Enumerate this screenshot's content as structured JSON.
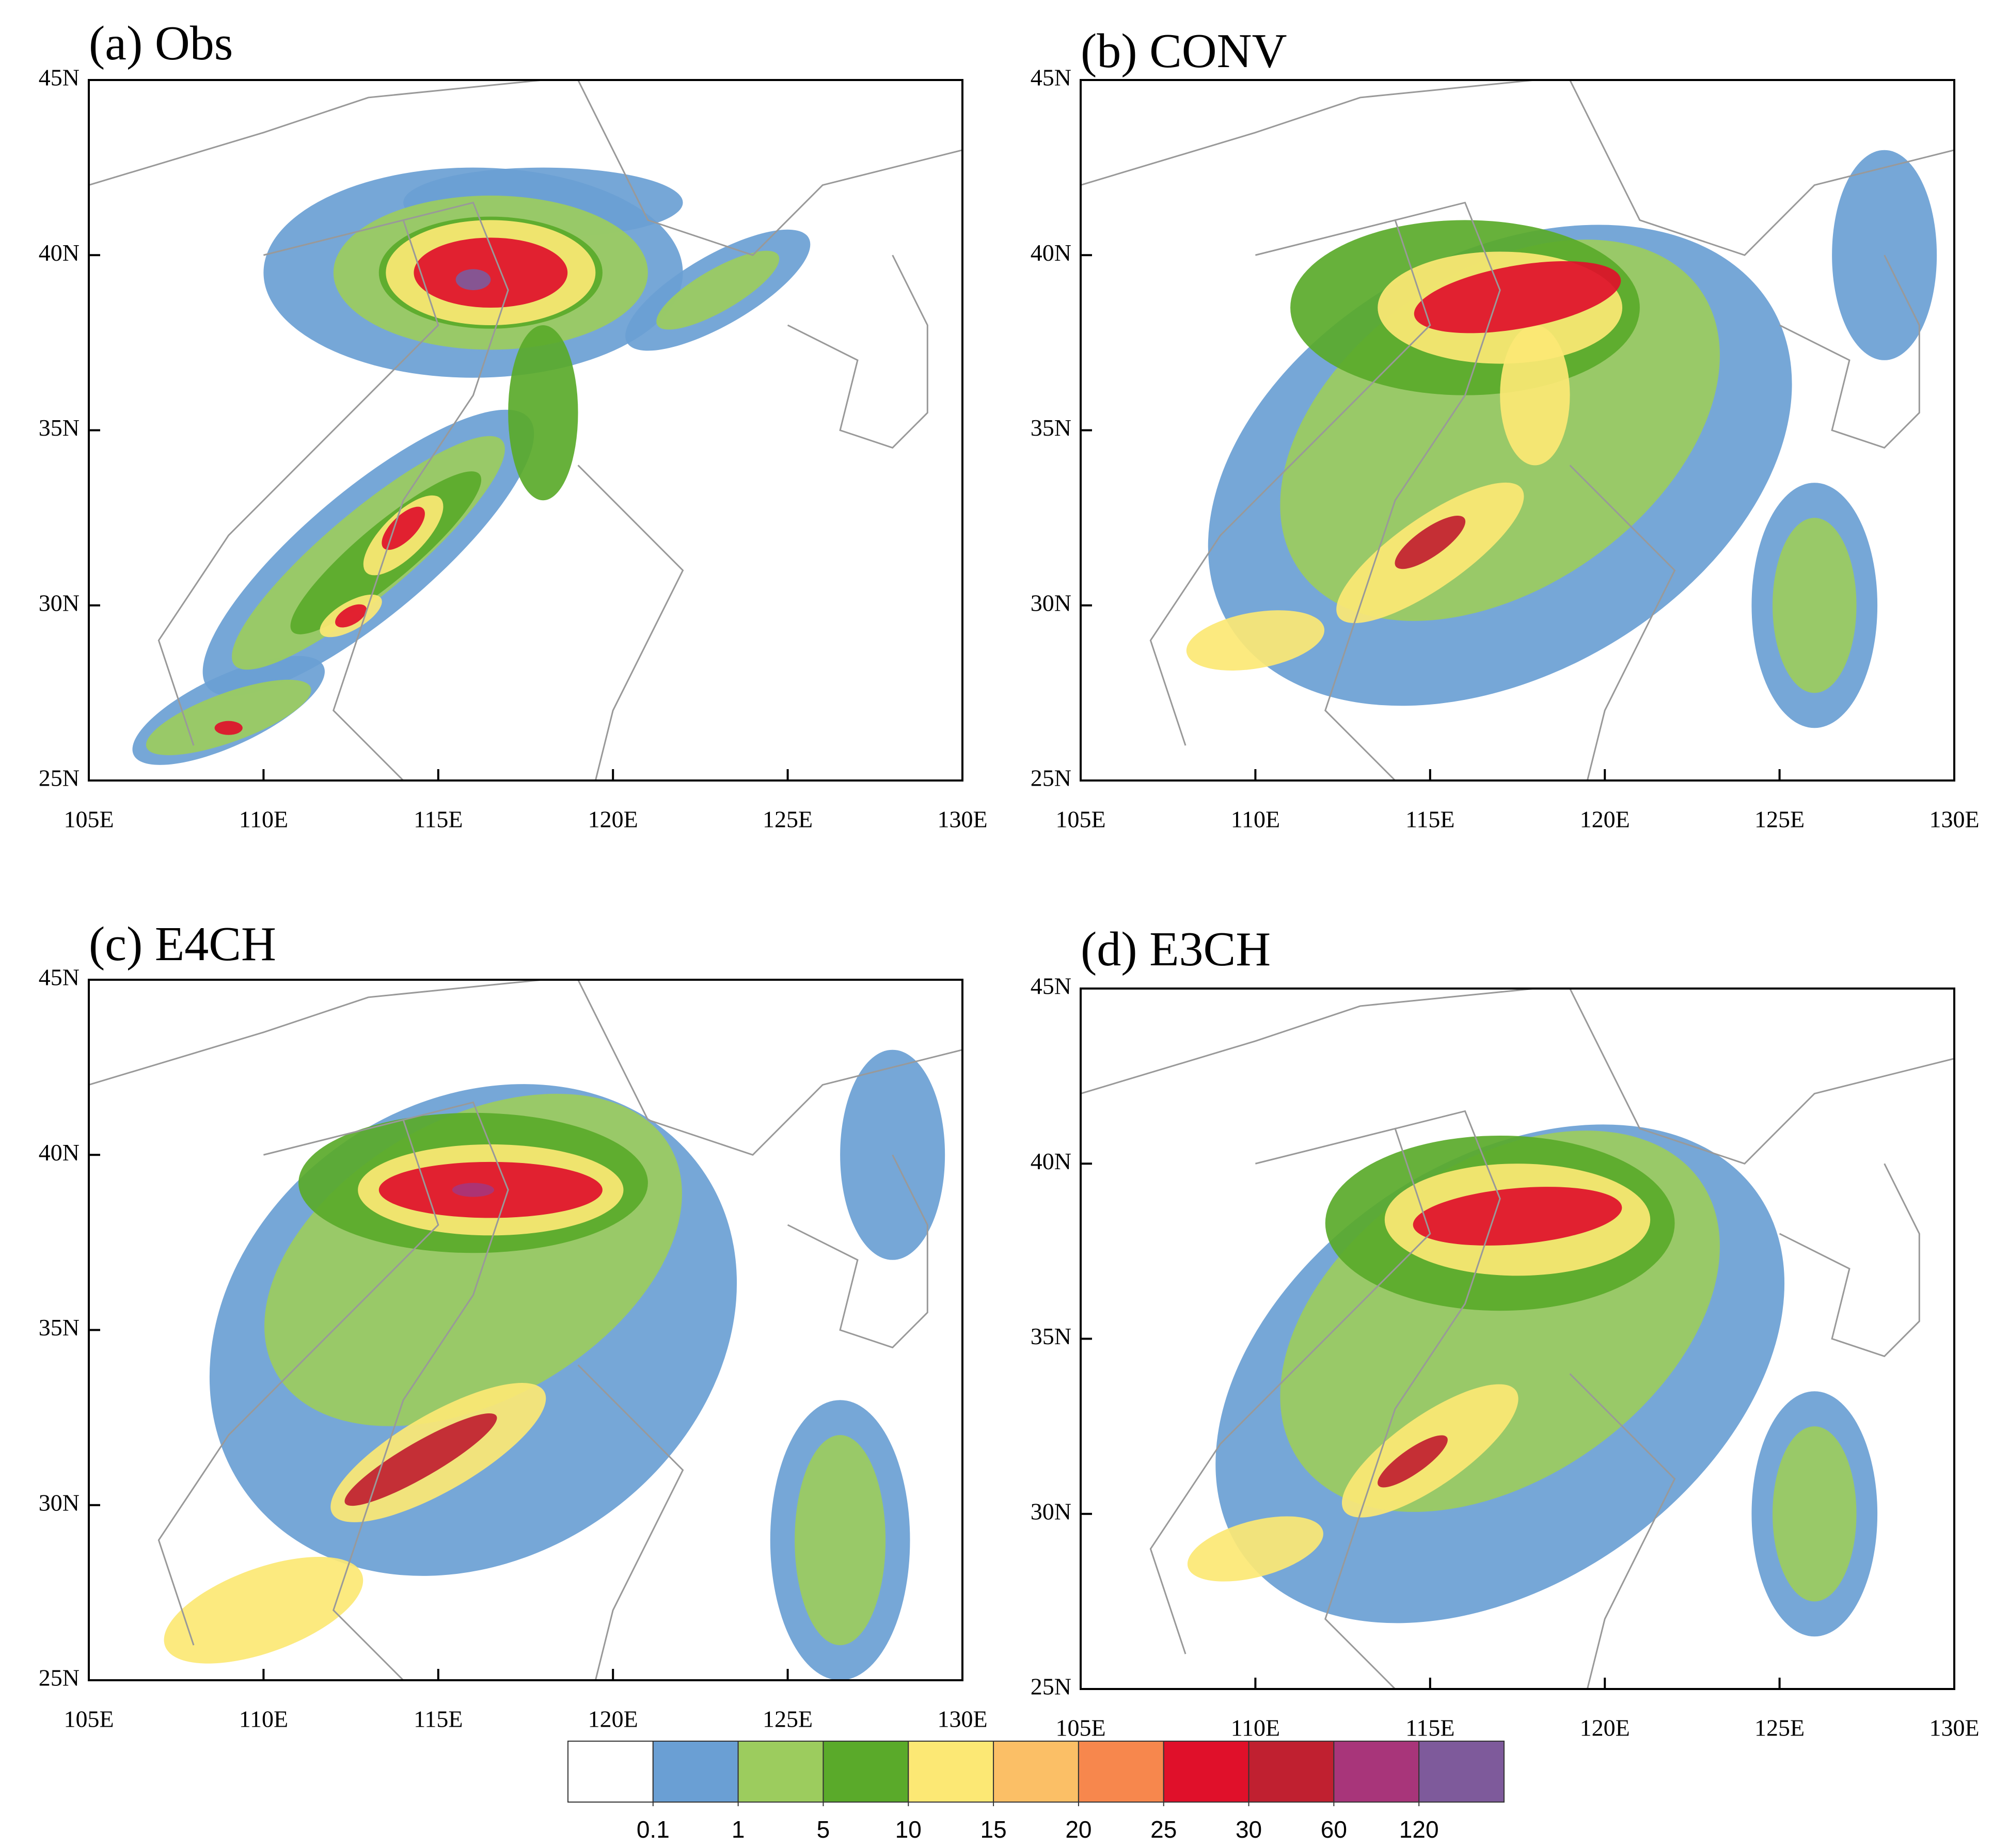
{
  "panels": [
    {
      "title": "(a) Obs"
    },
    {
      "title": "(b) CONV"
    },
    {
      "title": "(c) E4CH"
    },
    {
      "title": "(d) E3CH"
    }
  ],
  "map": {
    "lonlim": [
      105,
      130
    ],
    "latlim": [
      25,
      45
    ],
    "lon_ticks": [
      {
        "value": 105,
        "label": "105E"
      },
      {
        "value": 110,
        "label": "110E"
      },
      {
        "value": 115,
        "label": "115E"
      },
      {
        "value": 120,
        "label": "120E"
      },
      {
        "value": 125,
        "label": "125E"
      },
      {
        "value": 130,
        "label": "130E"
      }
    ],
    "lat_ticks": [
      {
        "value": 25,
        "label": "25N"
      },
      {
        "value": 30,
        "label": "30N"
      },
      {
        "value": 35,
        "label": "35N"
      },
      {
        "value": 40,
        "label": "40N"
      },
      {
        "value": 45,
        "label": "45N"
      }
    ]
  },
  "colorbar": {
    "colors": [
      "#ffffff",
      "#6a9fd4",
      "#9ccc5e",
      "#5aaa2a",
      "#fce874",
      "#fbbf66",
      "#f7874d",
      "#e0102a",
      "#c02030",
      "#a8357a",
      "#7e5a9b"
    ],
    "levels": [
      0.1,
      1,
      5,
      10,
      15,
      20,
      25,
      30,
      60,
      120
    ]
  }
}
